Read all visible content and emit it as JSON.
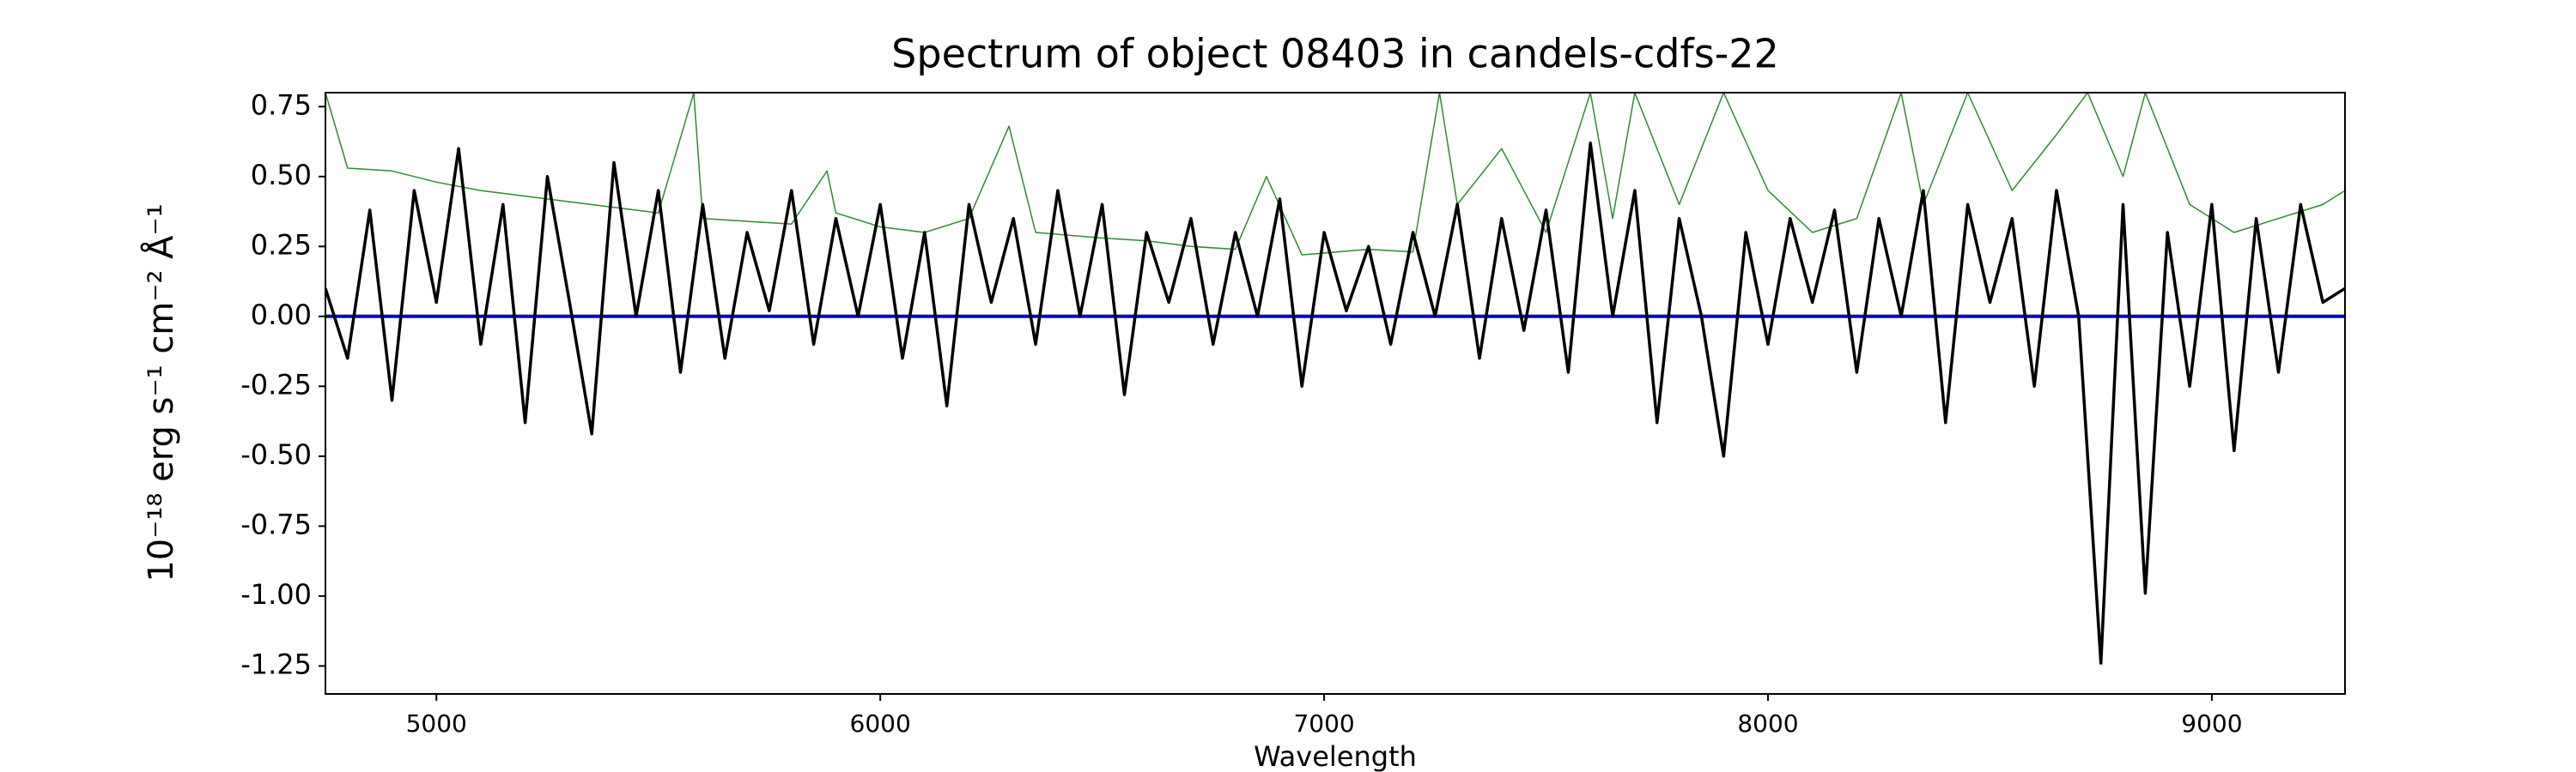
{
  "chart_data": {
    "type": "line",
    "title": "Spectrum of object 08403 in candels-cdfs-22",
    "x_label": "Wavelength",
    "y_label": "10⁻¹⁸ erg s⁻¹ cm⁻² Å⁻¹",
    "xlim": [
      4750,
      9300
    ],
    "ylim": [
      -1.35,
      0.8
    ],
    "xticks": [
      5000,
      6000,
      7000,
      8000,
      9000
    ],
    "yticks": [
      -1.25,
      {
        "value": -1,
        "label": "-1.00"
      },
      -0.75,
      {
        "value": -0.5,
        "label": "-0.50"
      },
      -0.25,
      {
        "value": 0,
        "label": "0.00"
      },
      0.25,
      {
        "value": 0.5,
        "label": "0.50"
      },
      0.75
    ],
    "series": [
      {
        "color": "#2e8b2e",
        "width": 1.5,
        "x": [
          4750,
          4800,
          4900,
          5000,
          5100,
          5200,
          5300,
          5400,
          5500,
          5580,
          5600,
          5700,
          5800,
          5880,
          5900,
          6000,
          6100,
          6200,
          6290,
          6350,
          6500,
          6600,
          6700,
          6800,
          6870,
          6950,
          7100,
          7200,
          7260,
          7300,
          7400,
          7500,
          7600,
          7650,
          7700,
          7800,
          7900,
          8000,
          8100,
          8200,
          8300,
          8350,
          8450,
          8550,
          8650,
          8720,
          8800,
          8850,
          8950,
          9050,
          9150,
          9250,
          9300
        ],
        "values": [
          0.8,
          0.53,
          0.52,
          0.48,
          0.45,
          0.43,
          0.41,
          0.39,
          0.37,
          0.8,
          0.35,
          0.34,
          0.33,
          0.52,
          0.37,
          0.32,
          0.3,
          0.35,
          0.68,
          0.3,
          0.28,
          0.27,
          0.25,
          0.24,
          0.5,
          0.22,
          0.24,
          0.23,
          0.8,
          0.4,
          0.6,
          0.3,
          0.8,
          0.35,
          0.8,
          0.4,
          0.8,
          0.45,
          0.3,
          0.35,
          0.8,
          0.4,
          0.8,
          0.45,
          0.65,
          0.8,
          0.5,
          0.8,
          0.4,
          0.3,
          0.35,
          0.4,
          0.45
        ]
      },
      {
        "color": "#0000cc",
        "width": 4,
        "x": [
          4750,
          9300
        ],
        "values": [
          0,
          0
        ]
      },
      {
        "color": "#000000",
        "width": 3.5,
        "x": [
          4750,
          4800,
          4850,
          4900,
          4950,
          5000,
          5050,
          5100,
          5150,
          5200,
          5250,
          5300,
          5350,
          5400,
          5450,
          5500,
          5550,
          5600,
          5650,
          5700,
          5750,
          5800,
          5850,
          5900,
          5950,
          6000,
          6050,
          6100,
          6150,
          6200,
          6250,
          6300,
          6350,
          6400,
          6450,
          6500,
          6550,
          6600,
          6650,
          6700,
          6750,
          6800,
          6850,
          6900,
          6950,
          7000,
          7050,
          7100,
          7150,
          7200,
          7250,
          7300,
          7350,
          7400,
          7450,
          7500,
          7550,
          7600,
          7650,
          7700,
          7750,
          7800,
          7850,
          7900,
          7950,
          8000,
          8050,
          8100,
          8150,
          8200,
          8250,
          8300,
          8350,
          8400,
          8450,
          8500,
          8550,
          8600,
          8650,
          8700,
          8750,
          8800,
          8850,
          8900,
          8950,
          9000,
          9050,
          9100,
          9150,
          9200,
          9250,
          9300
        ],
        "values": [
          0.1,
          -0.15,
          0.38,
          -0.3,
          0.45,
          0.05,
          0.6,
          -0.1,
          0.4,
          -0.38,
          0.5,
          0.05,
          -0.42,
          0.55,
          0,
          0.45,
          -0.2,
          0.4,
          -0.15,
          0.3,
          0.02,
          0.45,
          -0.1,
          0.35,
          0,
          0.4,
          -0.15,
          0.3,
          -0.32,
          0.4,
          0.05,
          0.35,
          -0.1,
          0.45,
          0,
          0.4,
          -0.28,
          0.3,
          0.05,
          0.35,
          -0.1,
          0.3,
          0,
          0.42,
          -0.25,
          0.3,
          0.02,
          0.25,
          -0.1,
          0.3,
          0,
          0.4,
          -0.15,
          0.35,
          -0.05,
          0.38,
          -0.2,
          0.62,
          0,
          0.45,
          -0.38,
          0.35,
          0,
          -0.5,
          0.3,
          -0.1,
          0.35,
          0.05,
          0.38,
          -0.2,
          0.35,
          0,
          0.45,
          -0.38,
          0.4,
          0.05,
          0.35,
          -0.25,
          0.45,
          0,
          -1.24,
          0.4,
          -0.99,
          0.3,
          -0.25,
          0.4,
          -0.48,
          0.35,
          -0.2,
          0.4,
          0.05,
          0.1
        ]
      }
    ]
  }
}
